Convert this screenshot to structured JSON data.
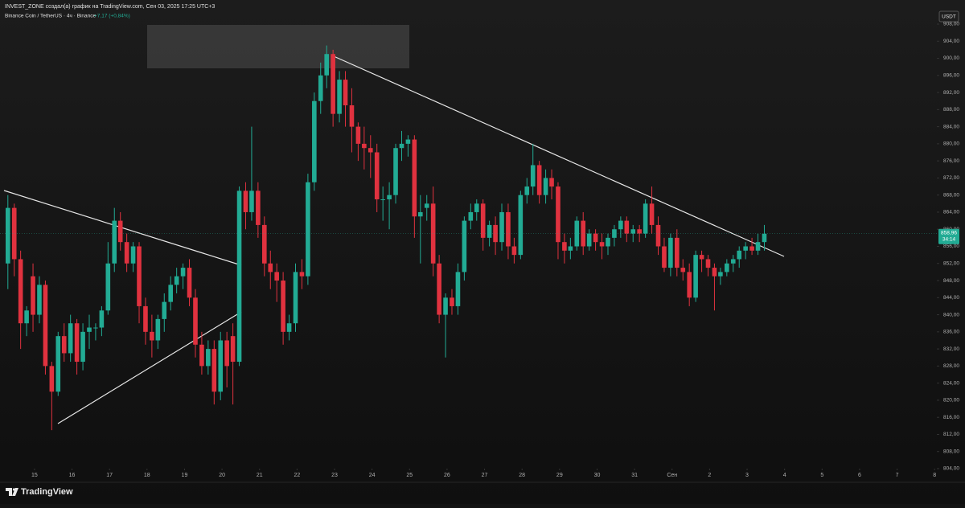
{
  "header": {
    "credit": "INVEST_ZONE создал(а) график на TradingView.com, Сен 03, 2025 17:25 UTC+3",
    "symbol": "Binance Coin / TetherUS · 4ч · Binance",
    "change": "+7,17 (+0,84%)",
    "currency": "USDT",
    "logo": "TradingView"
  },
  "chart_data": {
    "type": "candlestick",
    "up_color": "#22ab94",
    "down_color": "#e0323f",
    "grid": false,
    "xlim": [
      14.08,
      39.06
    ],
    "ylim": [
      804,
      913.64
    ],
    "xticks": [
      15,
      16,
      17,
      18,
      19,
      20,
      21,
      22,
      23,
      24,
      25,
      26,
      27,
      28,
      29,
      30,
      31,
      {
        "value": 32,
        "label": "Сен"
      },
      {
        "value": 33,
        "label": "2"
      },
      {
        "value": 34,
        "label": "3"
      },
      {
        "value": 35,
        "label": "4"
      },
      {
        "value": 36,
        "label": "5"
      },
      {
        "value": 37,
        "label": "6"
      },
      {
        "value": 38,
        "label": "7"
      },
      {
        "value": 39,
        "label": "8"
      }
    ],
    "yticks": [
      {
        "value": 804,
        "label": "804,00"
      },
      {
        "value": 808,
        "label": "808,00"
      },
      {
        "value": 812,
        "label": "812,00"
      },
      {
        "value": 816,
        "label": "816,00"
      },
      {
        "value": 820,
        "label": "820,00"
      },
      {
        "value": 824,
        "label": "824,00"
      },
      {
        "value": 828,
        "label": "828,00"
      },
      {
        "value": 832,
        "label": "832,00"
      },
      {
        "value": 836,
        "label": "836,00"
      },
      {
        "value": 840,
        "label": "840,00"
      },
      {
        "value": 844,
        "label": "844,00"
      },
      {
        "value": 848,
        "label": "848,00"
      },
      {
        "value": 852,
        "label": "852,00"
      },
      {
        "value": 856,
        "label": "856,00"
      },
      {
        "value": 860,
        "label": "860,00"
      },
      {
        "value": 864,
        "label": "864,00"
      },
      {
        "value": 868,
        "label": "868,00"
      },
      {
        "value": 872,
        "label": "872,00"
      },
      {
        "value": 876,
        "label": "876,00"
      },
      {
        "value": 880,
        "label": "880,00"
      },
      {
        "value": 884,
        "label": "884,00"
      },
      {
        "value": 888,
        "label": "888,00"
      },
      {
        "value": 892,
        "label": "892,00"
      },
      {
        "value": 896,
        "label": "896,00"
      },
      {
        "value": 900,
        "label": "900,00"
      },
      {
        "value": 904,
        "label": "904,00"
      },
      {
        "value": 908,
        "label": "908,00"
      }
    ],
    "last_price": {
      "value": 858.96,
      "label": "858,96"
    },
    "countdown": "34:14",
    "x": [
      14.29,
      14.46,
      14.63,
      14.79,
      14.96,
      15.13,
      15.29,
      15.46,
      15.63,
      15.79,
      15.96,
      16.13,
      16.29,
      16.46,
      16.63,
      16.79,
      16.96,
      17.13,
      17.29,
      17.46,
      17.63,
      17.79,
      17.96,
      18.13,
      18.29,
      18.46,
      18.63,
      18.79,
      18.96,
      19.13,
      19.29,
      19.46,
      19.63,
      19.79,
      19.96,
      20.13,
      20.29,
      20.46,
      20.63,
      20.79,
      20.96,
      21.13,
      21.29,
      21.46,
      21.63,
      21.79,
      21.96,
      22.13,
      22.29,
      22.46,
      22.63,
      22.79,
      22.96,
      23.13,
      23.29,
      23.46,
      23.63,
      23.79,
      23.96,
      24.13,
      24.29,
      24.46,
      24.63,
      24.79,
      24.96,
      25.13,
      25.29,
      25.46,
      25.63,
      25.79,
      25.96,
      26.13,
      26.29,
      26.46,
      26.63,
      26.79,
      26.96,
      27.13,
      27.29,
      27.46,
      27.63,
      27.79,
      27.96,
      28.13,
      28.29,
      28.46,
      28.63,
      28.79,
      28.96,
      29.13,
      29.29,
      29.46,
      29.63,
      29.79,
      29.96,
      30.13,
      30.29,
      30.46,
      30.63,
      30.79,
      30.96,
      31.13,
      31.29,
      31.46,
      31.63,
      31.79,
      31.96,
      32.13,
      32.29,
      32.46,
      32.63,
      32.79,
      32.96,
      33.13,
      33.29,
      33.46,
      33.63,
      33.79,
      33.96,
      34.13,
      34.29,
      34.46
    ],
    "open": [
      852,
      865,
      853,
      838,
      849,
      840,
      847,
      828,
      822,
      835,
      831,
      838,
      829,
      836,
      837,
      837,
      841,
      852,
      862,
      857,
      852,
      856,
      842,
      836,
      834,
      839,
      843,
      847,
      849,
      851,
      844,
      833,
      828,
      832,
      822,
      834,
      835,
      829,
      869,
      864,
      869,
      861,
      852,
      850,
      848,
      836,
      838,
      850,
      849,
      871,
      890,
      896,
      901,
      887,
      895,
      889,
      884,
      880,
      879,
      878,
      867,
      867,
      868,
      879,
      880,
      881,
      863,
      865,
      866,
      852,
      840,
      844,
      842,
      850,
      862,
      864,
      866,
      858,
      861,
      857,
      864,
      856,
      854,
      868,
      870,
      875,
      868,
      872,
      870,
      857,
      855,
      856,
      862,
      856,
      859,
      857,
      856,
      858,
      860,
      862,
      859,
      860,
      859,
      866,
      861,
      856,
      851,
      858,
      851,
      850,
      844,
      854,
      853,
      851,
      849,
      850,
      852,
      853,
      855,
      856,
      855,
      857
    ],
    "high": [
      868,
      866,
      855,
      842,
      852,
      849,
      848,
      829,
      836,
      838,
      840,
      839,
      838,
      840,
      838,
      842,
      857,
      865,
      864,
      859,
      857,
      857,
      844,
      840,
      840,
      845,
      849,
      851,
      852,
      853,
      846,
      836,
      834,
      834,
      836,
      836,
      838,
      870,
      871,
      884,
      871,
      863,
      855,
      852,
      850,
      840,
      852,
      853,
      873,
      892,
      899,
      903,
      902,
      897,
      897,
      893,
      885,
      884,
      882,
      880,
      870,
      871,
      880,
      883,
      882,
      882,
      868,
      868,
      870,
      854,
      845,
      846,
      852,
      863,
      866,
      867,
      867,
      862,
      863,
      866,
      866,
      858,
      869,
      872,
      880,
      876,
      874,
      874,
      871,
      859,
      858,
      863,
      864,
      860,
      860,
      859,
      859,
      861,
      863,
      863,
      861,
      861,
      867,
      870,
      863,
      858,
      859,
      860,
      853,
      852,
      855,
      855,
      854,
      852,
      851,
      853,
      854,
      856,
      857,
      858,
      859,
      861
    ],
    "low": [
      846,
      849,
      832,
      835,
      836,
      838,
      826,
      813,
      821,
      829,
      829,
      826,
      827,
      832,
      834,
      835,
      840,
      850,
      855,
      850,
      850,
      838,
      833,
      830,
      832,
      836,
      841,
      845,
      846,
      842,
      830,
      826,
      826,
      819,
      820,
      823,
      819,
      828,
      860,
      862,
      858,
      849,
      846,
      843,
      833,
      834,
      836,
      846,
      847,
      869,
      887,
      893,
      884,
      885,
      884,
      878,
      876,
      874,
      872,
      864,
      862,
      860,
      866,
      876,
      877,
      858,
      852,
      862,
      849,
      838,
      830,
      840,
      840,
      848,
      860,
      862,
      855,
      856,
      854,
      855,
      853,
      852,
      853,
      866,
      868,
      866,
      866,
      867,
      853,
      852,
      853,
      855,
      854,
      855,
      855,
      853,
      854,
      856,
      858,
      857,
      857,
      857,
      858,
      859,
      854,
      850,
      849,
      849,
      848,
      842,
      843,
      850,
      849,
      841,
      847,
      849,
      850,
      851,
      853,
      854,
      854,
      855
    ],
    "close": [
      865,
      853,
      838,
      841,
      840,
      847,
      828,
      822,
      835,
      831,
      838,
      829,
      836,
      837,
      837,
      841,
      852,
      862,
      857,
      852,
      856,
      842,
      836,
      834,
      839,
      843,
      847,
      849,
      851,
      844,
      833,
      828,
      832,
      822,
      834,
      828,
      829,
      869,
      864,
      869,
      861,
      852,
      850,
      848,
      836,
      838,
      850,
      849,
      871,
      890,
      896,
      901,
      887,
      895,
      889,
      884,
      880,
      879,
      878,
      867,
      867,
      868,
      879,
      880,
      881,
      863,
      864,
      866,
      852,
      840,
      844,
      842,
      850,
      862,
      864,
      866,
      858,
      861,
      857,
      864,
      856,
      854,
      868,
      870,
      875,
      868,
      872,
      870,
      857,
      855,
      856,
      862,
      856,
      859,
      857,
      856,
      858,
      860,
      862,
      859,
      860,
      859,
      866,
      861,
      856,
      851,
      858,
      851,
      850,
      844,
      854,
      853,
      851,
      849,
      850,
      852,
      853,
      855,
      856,
      855,
      857,
      858.96
    ]
  }
}
